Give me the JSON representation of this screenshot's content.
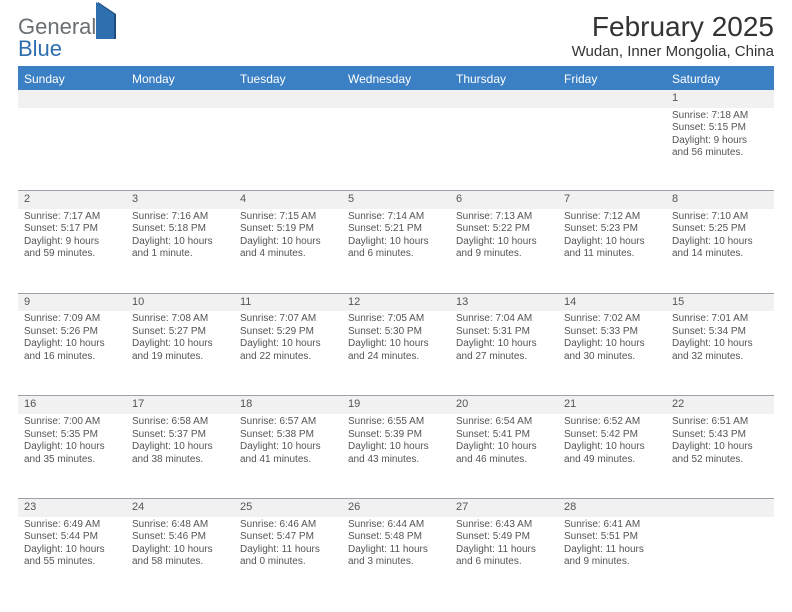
{
  "logo": {
    "part1": "General",
    "part2": "Blue"
  },
  "header": {
    "title": "February 2025",
    "subtitle": "Wudan, Inner Mongolia, China"
  },
  "weekdays": [
    "Sunday",
    "Monday",
    "Tuesday",
    "Wednesday",
    "Thursday",
    "Friday",
    "Saturday"
  ],
  "colors": {
    "header_bg": "#3b7fc4",
    "row_tint": "#f1f1f1",
    "divider": "#9aa3ab"
  },
  "weeks": [
    [
      null,
      null,
      null,
      null,
      null,
      null,
      {
        "day": "1",
        "sunrise": "Sunrise: 7:18 AM",
        "sunset": "Sunset: 5:15 PM",
        "daylight1": "Daylight: 9 hours",
        "daylight2": "and 56 minutes."
      }
    ],
    [
      {
        "day": "2",
        "sunrise": "Sunrise: 7:17 AM",
        "sunset": "Sunset: 5:17 PM",
        "daylight1": "Daylight: 9 hours",
        "daylight2": "and 59 minutes."
      },
      {
        "day": "3",
        "sunrise": "Sunrise: 7:16 AM",
        "sunset": "Sunset: 5:18 PM",
        "daylight1": "Daylight: 10 hours",
        "daylight2": "and 1 minute."
      },
      {
        "day": "4",
        "sunrise": "Sunrise: 7:15 AM",
        "sunset": "Sunset: 5:19 PM",
        "daylight1": "Daylight: 10 hours",
        "daylight2": "and 4 minutes."
      },
      {
        "day": "5",
        "sunrise": "Sunrise: 7:14 AM",
        "sunset": "Sunset: 5:21 PM",
        "daylight1": "Daylight: 10 hours",
        "daylight2": "and 6 minutes."
      },
      {
        "day": "6",
        "sunrise": "Sunrise: 7:13 AM",
        "sunset": "Sunset: 5:22 PM",
        "daylight1": "Daylight: 10 hours",
        "daylight2": "and 9 minutes."
      },
      {
        "day": "7",
        "sunrise": "Sunrise: 7:12 AM",
        "sunset": "Sunset: 5:23 PM",
        "daylight1": "Daylight: 10 hours",
        "daylight2": "and 11 minutes."
      },
      {
        "day": "8",
        "sunrise": "Sunrise: 7:10 AM",
        "sunset": "Sunset: 5:25 PM",
        "daylight1": "Daylight: 10 hours",
        "daylight2": "and 14 minutes."
      }
    ],
    [
      {
        "day": "9",
        "sunrise": "Sunrise: 7:09 AM",
        "sunset": "Sunset: 5:26 PM",
        "daylight1": "Daylight: 10 hours",
        "daylight2": "and 16 minutes."
      },
      {
        "day": "10",
        "sunrise": "Sunrise: 7:08 AM",
        "sunset": "Sunset: 5:27 PM",
        "daylight1": "Daylight: 10 hours",
        "daylight2": "and 19 minutes."
      },
      {
        "day": "11",
        "sunrise": "Sunrise: 7:07 AM",
        "sunset": "Sunset: 5:29 PM",
        "daylight1": "Daylight: 10 hours",
        "daylight2": "and 22 minutes."
      },
      {
        "day": "12",
        "sunrise": "Sunrise: 7:05 AM",
        "sunset": "Sunset: 5:30 PM",
        "daylight1": "Daylight: 10 hours",
        "daylight2": "and 24 minutes."
      },
      {
        "day": "13",
        "sunrise": "Sunrise: 7:04 AM",
        "sunset": "Sunset: 5:31 PM",
        "daylight1": "Daylight: 10 hours",
        "daylight2": "and 27 minutes."
      },
      {
        "day": "14",
        "sunrise": "Sunrise: 7:02 AM",
        "sunset": "Sunset: 5:33 PM",
        "daylight1": "Daylight: 10 hours",
        "daylight2": "and 30 minutes."
      },
      {
        "day": "15",
        "sunrise": "Sunrise: 7:01 AM",
        "sunset": "Sunset: 5:34 PM",
        "daylight1": "Daylight: 10 hours",
        "daylight2": "and 32 minutes."
      }
    ],
    [
      {
        "day": "16",
        "sunrise": "Sunrise: 7:00 AM",
        "sunset": "Sunset: 5:35 PM",
        "daylight1": "Daylight: 10 hours",
        "daylight2": "and 35 minutes."
      },
      {
        "day": "17",
        "sunrise": "Sunrise: 6:58 AM",
        "sunset": "Sunset: 5:37 PM",
        "daylight1": "Daylight: 10 hours",
        "daylight2": "and 38 minutes."
      },
      {
        "day": "18",
        "sunrise": "Sunrise: 6:57 AM",
        "sunset": "Sunset: 5:38 PM",
        "daylight1": "Daylight: 10 hours",
        "daylight2": "and 41 minutes."
      },
      {
        "day": "19",
        "sunrise": "Sunrise: 6:55 AM",
        "sunset": "Sunset: 5:39 PM",
        "daylight1": "Daylight: 10 hours",
        "daylight2": "and 43 minutes."
      },
      {
        "day": "20",
        "sunrise": "Sunrise: 6:54 AM",
        "sunset": "Sunset: 5:41 PM",
        "daylight1": "Daylight: 10 hours",
        "daylight2": "and 46 minutes."
      },
      {
        "day": "21",
        "sunrise": "Sunrise: 6:52 AM",
        "sunset": "Sunset: 5:42 PM",
        "daylight1": "Daylight: 10 hours",
        "daylight2": "and 49 minutes."
      },
      {
        "day": "22",
        "sunrise": "Sunrise: 6:51 AM",
        "sunset": "Sunset: 5:43 PM",
        "daylight1": "Daylight: 10 hours",
        "daylight2": "and 52 minutes."
      }
    ],
    [
      {
        "day": "23",
        "sunrise": "Sunrise: 6:49 AM",
        "sunset": "Sunset: 5:44 PM",
        "daylight1": "Daylight: 10 hours",
        "daylight2": "and 55 minutes."
      },
      {
        "day": "24",
        "sunrise": "Sunrise: 6:48 AM",
        "sunset": "Sunset: 5:46 PM",
        "daylight1": "Daylight: 10 hours",
        "daylight2": "and 58 minutes."
      },
      {
        "day": "25",
        "sunrise": "Sunrise: 6:46 AM",
        "sunset": "Sunset: 5:47 PM",
        "daylight1": "Daylight: 11 hours",
        "daylight2": "and 0 minutes."
      },
      {
        "day": "26",
        "sunrise": "Sunrise: 6:44 AM",
        "sunset": "Sunset: 5:48 PM",
        "daylight1": "Daylight: 11 hours",
        "daylight2": "and 3 minutes."
      },
      {
        "day": "27",
        "sunrise": "Sunrise: 6:43 AM",
        "sunset": "Sunset: 5:49 PM",
        "daylight1": "Daylight: 11 hours",
        "daylight2": "and 6 minutes."
      },
      {
        "day": "28",
        "sunrise": "Sunrise: 6:41 AM",
        "sunset": "Sunset: 5:51 PM",
        "daylight1": "Daylight: 11 hours",
        "daylight2": "and 9 minutes."
      },
      null
    ]
  ]
}
